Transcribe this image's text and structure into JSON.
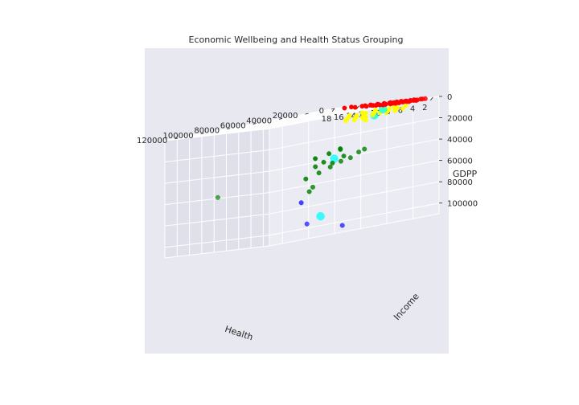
{
  "chart_data": {
    "type": "scatter",
    "projection": "3d",
    "title": "Economic Wellbeing and Health Status Grouping",
    "xlabel": "Health",
    "ylabel": "Income",
    "zlabel": "GDPP",
    "xlim": [
      1,
      18
    ],
    "ylim": [
      0,
      130000
    ],
    "zlim": [
      0,
      110000
    ],
    "xticks": [
      2,
      4,
      6,
      8,
      10,
      12,
      14,
      16,
      18
    ],
    "yticks": [
      0,
      20000,
      40000,
      60000,
      80000,
      100000,
      120000
    ],
    "zticks": [
      0,
      20000,
      40000,
      60000,
      80000,
      100000
    ],
    "grid": true,
    "background": "#e8e8f0",
    "series": [
      {
        "color": "#ff0000",
        "points": [
          [
            3.0,
            1200,
            500
          ],
          [
            3.4,
            1500,
            450
          ],
          [
            3.8,
            900,
            400
          ],
          [
            4.2,
            1800,
            700
          ],
          [
            4.5,
            2100,
            550
          ],
          [
            4.8,
            1300,
            350
          ],
          [
            5.1,
            2500,
            600
          ],
          [
            5.3,
            1700,
            450
          ],
          [
            5.6,
            3000,
            800
          ],
          [
            5.9,
            2200,
            650
          ],
          [
            6.1,
            1600,
            500
          ],
          [
            6.4,
            2800,
            900
          ],
          [
            6.7,
            1900,
            550
          ],
          [
            7.0,
            3300,
            1000
          ],
          [
            7.3,
            2400,
            700
          ],
          [
            7.6,
            1400,
            400
          ],
          [
            7.9,
            3600,
            1100
          ],
          [
            8.2,
            2700,
            800
          ],
          [
            8.5,
            1800,
            500
          ],
          [
            8.8,
            4200,
            1300
          ],
          [
            9.1,
            3100,
            900
          ],
          [
            9.4,
            2300,
            650
          ],
          [
            9.8,
            3900,
            1200
          ],
          [
            10.2,
            2900,
            800
          ],
          [
            10.6,
            1900,
            500
          ],
          [
            11.0,
            3400,
            1000
          ],
          [
            11.5,
            2600,
            700
          ],
          [
            12.0,
            3800,
            1100
          ],
          [
            13.0,
            2400,
            650
          ],
          [
            14.0,
            3000,
            900
          ],
          [
            4.0,
            3500,
            1000
          ],
          [
            5.0,
            4200,
            1200
          ],
          [
            6.0,
            3800,
            950
          ],
          [
            7.0,
            5000,
            1400
          ],
          [
            8.0,
            4500,
            1300
          ],
          [
            9.0,
            5200,
            1500
          ],
          [
            6.5,
            4700,
            1250
          ],
          [
            7.5,
            3900,
            1050
          ],
          [
            8.6,
            2100,
            600
          ],
          [
            5.5,
            3300,
            880
          ],
          [
            6.9,
            1200,
            350
          ],
          [
            4.6,
            2700,
            720
          ],
          [
            7.8,
            2500,
            680
          ],
          [
            9.6,
            1600,
            450
          ],
          [
            10.4,
            4100,
            1150
          ],
          [
            11.8,
            1500,
            420
          ],
          [
            12.6,
            2000,
            560
          ],
          [
            15.0,
            1200,
            350
          ],
          [
            16.0,
            1800,
            500
          ]
        ]
      },
      {
        "color": "#ffff00",
        "points": [
          [
            4.5,
            9000,
            4000
          ],
          [
            5.2,
            12000,
            5500
          ],
          [
            5.8,
            10000,
            4800
          ],
          [
            6.3,
            14000,
            6500
          ],
          [
            6.8,
            11000,
            5200
          ],
          [
            7.2,
            16000,
            7500
          ],
          [
            7.6,
            13000,
            6000
          ],
          [
            8.0,
            18000,
            8500
          ],
          [
            8.4,
            15000,
            7000
          ],
          [
            8.8,
            12000,
            5600
          ],
          [
            9.2,
            20000,
            9500
          ],
          [
            9.6,
            17000,
            8000
          ],
          [
            10.0,
            14000,
            6600
          ],
          [
            10.5,
            19000,
            9000
          ],
          [
            11.0,
            16000,
            7600
          ],
          [
            11.5,
            22000,
            10500
          ],
          [
            12.0,
            18000,
            8600
          ],
          [
            6.0,
            17000,
            8000
          ],
          [
            7.0,
            21000,
            9800
          ],
          [
            8.2,
            24000,
            11000
          ],
          [
            5.0,
            15000,
            7200
          ],
          [
            9.0,
            11000,
            5000
          ],
          [
            10.8,
            12500,
            5800
          ],
          [
            6.6,
            8500,
            3900
          ],
          [
            7.9,
            9500,
            4400
          ],
          [
            4.0,
            13500,
            6200
          ],
          [
            12.5,
            14500,
            6900
          ],
          [
            8.6,
            20500,
            9700
          ],
          [
            9.9,
            23000,
            10800
          ],
          [
            7.4,
            26000,
            12000
          ]
        ]
      },
      {
        "color": "#008000",
        "points": [
          [
            6.0,
            38000,
            40000
          ],
          [
            6.5,
            42000,
            44000
          ],
          [
            7.2,
            46000,
            46000
          ],
          [
            8.0,
            40000,
            42000
          ],
          [
            8.5,
            48000,
            50000
          ],
          [
            9.0,
            44000,
            47000
          ],
          [
            9.5,
            52000,
            54000
          ],
          [
            10.0,
            46000,
            45000
          ],
          [
            10.5,
            50000,
            48000
          ],
          [
            11.0,
            55000,
            58000
          ],
          [
            9.8,
            58000,
            70000
          ],
          [
            8.8,
            60000,
            66000
          ],
          [
            11.5,
            120000,
            60000
          ],
          [
            7.5,
            45000,
            35000
          ],
          [
            10.2,
            41000,
            38000
          ],
          [
            12.0,
            43000,
            41000
          ],
          [
            5.5,
            36000,
            38000
          ],
          [
            9.2,
            37000,
            35000
          ]
        ]
      },
      {
        "color": "#0000ff",
        "points": [
          [
            4.0,
            60000,
            105000
          ],
          [
            5.5,
            80000,
            98000
          ],
          [
            7.5,
            75000,
            78000
          ]
        ]
      },
      {
        "color": "#00ffff",
        "points": [
          [
            8.0,
            10000,
            5000
          ],
          [
            7.5,
            19000,
            9000
          ],
          [
            8.5,
            45000,
            43000
          ],
          [
            5.0,
            72000,
            93000
          ]
        ]
      }
    ]
  }
}
